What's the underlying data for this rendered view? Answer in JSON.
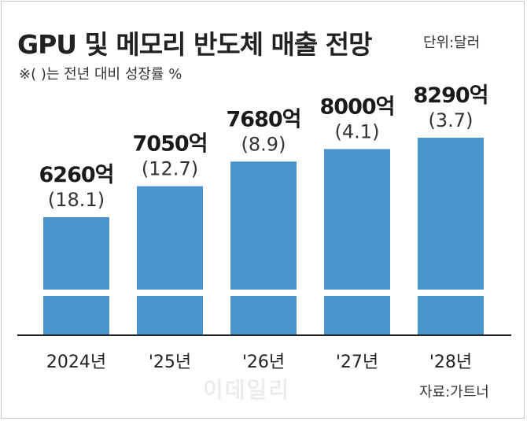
{
  "header": {
    "title": "GPU 및 메모리 반도체 매출 전망",
    "unit": "단위:달러",
    "note": "※( )는 전년 대비 성장률 %"
  },
  "footer": {
    "source": "자료:가트너",
    "watermark": "이데일리"
  },
  "colors": {
    "bar": "#4a96cc",
    "axis": "#222222",
    "text": "#1a1a1a"
  },
  "chart_data": {
    "type": "bar",
    "categories": [
      "2024년",
      "'25년",
      "'26년",
      "'27년",
      "'28년"
    ],
    "values": [
      6260,
      7050,
      7680,
      8000,
      8290
    ],
    "value_labels": [
      "6260억",
      "7050억",
      "7680억",
      "8000억",
      "8290억"
    ],
    "growth_labels": [
      "(18.1)",
      "(12.7)",
      "(8.9)",
      "(4.1)",
      "(3.7)"
    ],
    "growth_rates": [
      18.1,
      12.7,
      8.9,
      4.1,
      3.7
    ],
    "title": "GPU 및 메모리 반도체 매출 전망",
    "xlabel": "",
    "ylabel": "",
    "axis_break": true,
    "grid": false
  }
}
